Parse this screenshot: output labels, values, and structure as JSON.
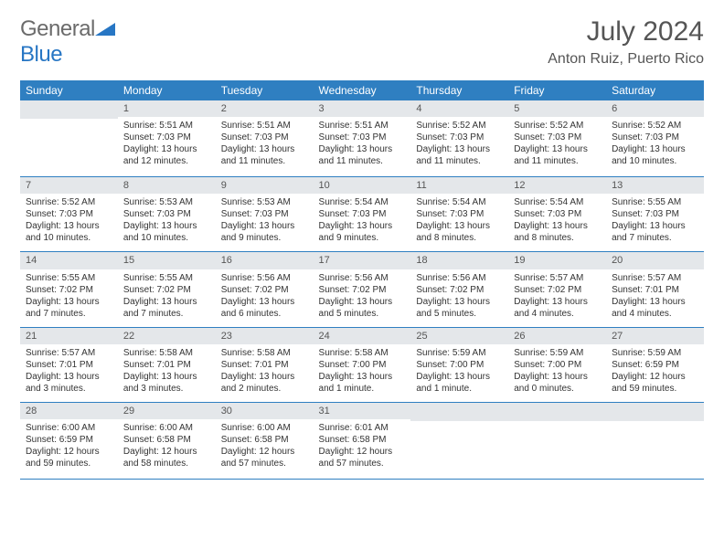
{
  "brand": {
    "part1": "General",
    "part2": "Blue"
  },
  "title": "July 2024",
  "location": "Anton Ruiz, Puerto Rico",
  "colors": {
    "accent": "#2f7fc1",
    "daynum_bg": "#e4e7ea",
    "text": "#333333",
    "muted": "#555555",
    "background": "#ffffff"
  },
  "dow": [
    "Sunday",
    "Monday",
    "Tuesday",
    "Wednesday",
    "Thursday",
    "Friday",
    "Saturday"
  ],
  "weeks": [
    [
      {
        "n": "",
        "sr": "",
        "ss": "",
        "dl": ""
      },
      {
        "n": "1",
        "sr": "Sunrise: 5:51 AM",
        "ss": "Sunset: 7:03 PM",
        "dl": "Daylight: 13 hours and 12 minutes."
      },
      {
        "n": "2",
        "sr": "Sunrise: 5:51 AM",
        "ss": "Sunset: 7:03 PM",
        "dl": "Daylight: 13 hours and 11 minutes."
      },
      {
        "n": "3",
        "sr": "Sunrise: 5:51 AM",
        "ss": "Sunset: 7:03 PM",
        "dl": "Daylight: 13 hours and 11 minutes."
      },
      {
        "n": "4",
        "sr": "Sunrise: 5:52 AM",
        "ss": "Sunset: 7:03 PM",
        "dl": "Daylight: 13 hours and 11 minutes."
      },
      {
        "n": "5",
        "sr": "Sunrise: 5:52 AM",
        "ss": "Sunset: 7:03 PM",
        "dl": "Daylight: 13 hours and 11 minutes."
      },
      {
        "n": "6",
        "sr": "Sunrise: 5:52 AM",
        "ss": "Sunset: 7:03 PM",
        "dl": "Daylight: 13 hours and 10 minutes."
      }
    ],
    [
      {
        "n": "7",
        "sr": "Sunrise: 5:52 AM",
        "ss": "Sunset: 7:03 PM",
        "dl": "Daylight: 13 hours and 10 minutes."
      },
      {
        "n": "8",
        "sr": "Sunrise: 5:53 AM",
        "ss": "Sunset: 7:03 PM",
        "dl": "Daylight: 13 hours and 10 minutes."
      },
      {
        "n": "9",
        "sr": "Sunrise: 5:53 AM",
        "ss": "Sunset: 7:03 PM",
        "dl": "Daylight: 13 hours and 9 minutes."
      },
      {
        "n": "10",
        "sr": "Sunrise: 5:54 AM",
        "ss": "Sunset: 7:03 PM",
        "dl": "Daylight: 13 hours and 9 minutes."
      },
      {
        "n": "11",
        "sr": "Sunrise: 5:54 AM",
        "ss": "Sunset: 7:03 PM",
        "dl": "Daylight: 13 hours and 8 minutes."
      },
      {
        "n": "12",
        "sr": "Sunrise: 5:54 AM",
        "ss": "Sunset: 7:03 PM",
        "dl": "Daylight: 13 hours and 8 minutes."
      },
      {
        "n": "13",
        "sr": "Sunrise: 5:55 AM",
        "ss": "Sunset: 7:03 PM",
        "dl": "Daylight: 13 hours and 7 minutes."
      }
    ],
    [
      {
        "n": "14",
        "sr": "Sunrise: 5:55 AM",
        "ss": "Sunset: 7:02 PM",
        "dl": "Daylight: 13 hours and 7 minutes."
      },
      {
        "n": "15",
        "sr": "Sunrise: 5:55 AM",
        "ss": "Sunset: 7:02 PM",
        "dl": "Daylight: 13 hours and 7 minutes."
      },
      {
        "n": "16",
        "sr": "Sunrise: 5:56 AM",
        "ss": "Sunset: 7:02 PM",
        "dl": "Daylight: 13 hours and 6 minutes."
      },
      {
        "n": "17",
        "sr": "Sunrise: 5:56 AM",
        "ss": "Sunset: 7:02 PM",
        "dl": "Daylight: 13 hours and 5 minutes."
      },
      {
        "n": "18",
        "sr": "Sunrise: 5:56 AM",
        "ss": "Sunset: 7:02 PM",
        "dl": "Daylight: 13 hours and 5 minutes."
      },
      {
        "n": "19",
        "sr": "Sunrise: 5:57 AM",
        "ss": "Sunset: 7:02 PM",
        "dl": "Daylight: 13 hours and 4 minutes."
      },
      {
        "n": "20",
        "sr": "Sunrise: 5:57 AM",
        "ss": "Sunset: 7:01 PM",
        "dl": "Daylight: 13 hours and 4 minutes."
      }
    ],
    [
      {
        "n": "21",
        "sr": "Sunrise: 5:57 AM",
        "ss": "Sunset: 7:01 PM",
        "dl": "Daylight: 13 hours and 3 minutes."
      },
      {
        "n": "22",
        "sr": "Sunrise: 5:58 AM",
        "ss": "Sunset: 7:01 PM",
        "dl": "Daylight: 13 hours and 3 minutes."
      },
      {
        "n": "23",
        "sr": "Sunrise: 5:58 AM",
        "ss": "Sunset: 7:01 PM",
        "dl": "Daylight: 13 hours and 2 minutes."
      },
      {
        "n": "24",
        "sr": "Sunrise: 5:58 AM",
        "ss": "Sunset: 7:00 PM",
        "dl": "Daylight: 13 hours and 1 minute."
      },
      {
        "n": "25",
        "sr": "Sunrise: 5:59 AM",
        "ss": "Sunset: 7:00 PM",
        "dl": "Daylight: 13 hours and 1 minute."
      },
      {
        "n": "26",
        "sr": "Sunrise: 5:59 AM",
        "ss": "Sunset: 7:00 PM",
        "dl": "Daylight: 13 hours and 0 minutes."
      },
      {
        "n": "27",
        "sr": "Sunrise: 5:59 AM",
        "ss": "Sunset: 6:59 PM",
        "dl": "Daylight: 12 hours and 59 minutes."
      }
    ],
    [
      {
        "n": "28",
        "sr": "Sunrise: 6:00 AM",
        "ss": "Sunset: 6:59 PM",
        "dl": "Daylight: 12 hours and 59 minutes."
      },
      {
        "n": "29",
        "sr": "Sunrise: 6:00 AM",
        "ss": "Sunset: 6:58 PM",
        "dl": "Daylight: 12 hours and 58 minutes."
      },
      {
        "n": "30",
        "sr": "Sunrise: 6:00 AM",
        "ss": "Sunset: 6:58 PM",
        "dl": "Daylight: 12 hours and 57 minutes."
      },
      {
        "n": "31",
        "sr": "Sunrise: 6:01 AM",
        "ss": "Sunset: 6:58 PM",
        "dl": "Daylight: 12 hours and 57 minutes."
      },
      {
        "n": "",
        "sr": "",
        "ss": "",
        "dl": ""
      },
      {
        "n": "",
        "sr": "",
        "ss": "",
        "dl": ""
      },
      {
        "n": "",
        "sr": "",
        "ss": "",
        "dl": ""
      }
    ]
  ]
}
